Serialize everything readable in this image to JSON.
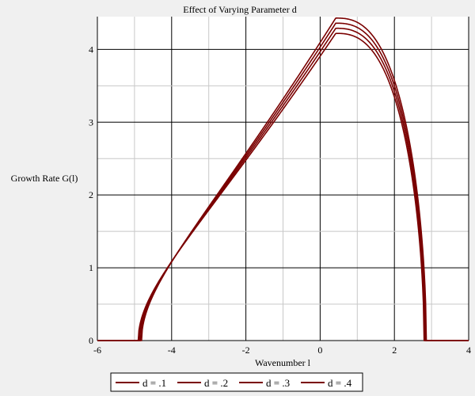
{
  "chart_data": {
    "type": "line",
    "title": "Effect of Varying Parameter d",
    "xlabel": "Wavenumber l",
    "ylabel": "Growth Rate G(l)",
    "xlim": [
      -6,
      4
    ],
    "ylim": [
      0,
      4.45
    ],
    "x_ticks": [
      -6,
      -4,
      -2,
      0,
      2,
      4
    ],
    "y_ticks": [
      0,
      1,
      2,
      3,
      4
    ],
    "grid": true,
    "legend_position": "bottom",
    "line_color": "#7a0000",
    "series": [
      {
        "name": "d = .1",
        "cutoff_left": -4.9,
        "cutoff_right": 2.8,
        "peak_x": 0.42,
        "peak_y": 4.22
      },
      {
        "name": "d = .2",
        "cutoff_left": -4.87,
        "cutoff_right": 2.82,
        "peak_x": 0.42,
        "peak_y": 4.29
      },
      {
        "name": "d = .3",
        "cutoff_left": -4.84,
        "cutoff_right": 2.84,
        "peak_x": 0.42,
        "peak_y": 4.36
      },
      {
        "name": "d = .4",
        "cutoff_left": -4.81,
        "cutoff_right": 2.86,
        "peak_x": 0.42,
        "peak_y": 4.43
      }
    ]
  }
}
